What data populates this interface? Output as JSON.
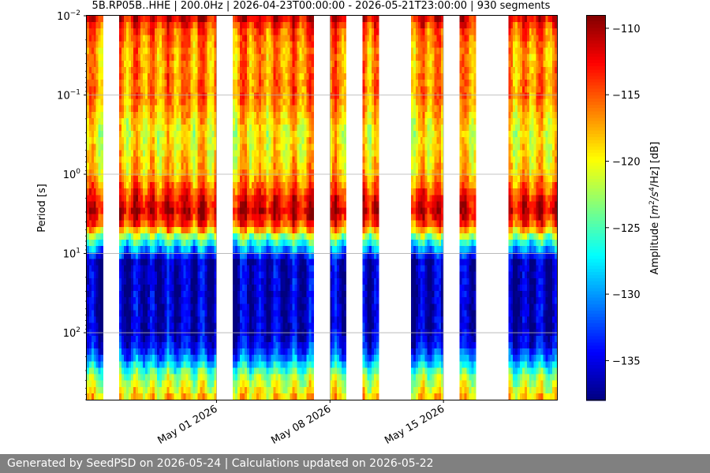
{
  "chart_data": {
    "type": "heatmap",
    "title": "5B.RP05B..HHE | 200.0Hz | 2026-04-23T00:00:00 - 2026-05-21T23:00:00 | 930 segments",
    "ylabel": "Period [s]",
    "xlabel": "",
    "y_scale": "log",
    "y_axis_inverted": true,
    "y_range": [
      0.01,
      700
    ],
    "y_ticks": [
      {
        "value": 0.01,
        "base": "10",
        "exp": "−2"
      },
      {
        "value": 0.1,
        "base": "10",
        "exp": "−1"
      },
      {
        "value": 1,
        "base": "10",
        "exp": "0"
      },
      {
        "value": 10,
        "base": "10",
        "exp": "1"
      },
      {
        "value": 100,
        "base": "10",
        "exp": "2"
      }
    ],
    "x_range": [
      "2026-04-23T00:00",
      "2026-05-22T00:00"
    ],
    "x_ticks": [
      {
        "date": "2026-05-01",
        "label": "May 01 2026"
      },
      {
        "date": "2026-05-08",
        "label": "May 08 2026"
      },
      {
        "date": "2026-05-15",
        "label": "May 15 2026"
      }
    ],
    "grid": true,
    "data_segments": [
      [
        "2026-04-23T00:00",
        "2026-04-24T00:00"
      ],
      [
        "2026-04-25T00:00",
        "2026-05-01T00:00"
      ],
      [
        "2026-05-02T00:00",
        "2026-05-07T00:00"
      ],
      [
        "2026-05-08T00:00",
        "2026-05-09T00:00"
      ],
      [
        "2026-05-10T00:00",
        "2026-05-11T00:00"
      ],
      [
        "2026-05-13T00:00",
        "2026-05-15T00:00"
      ],
      [
        "2026-05-16T00:00",
        "2026-05-17T00:00"
      ],
      [
        "2026-05-19T00:00",
        "2026-05-22T00:00"
      ]
    ],
    "amplitude_profile": [
      {
        "period": 0.01,
        "amplitude_db": -111
      },
      {
        "period": 0.015,
        "amplitude_db": -115
      },
      {
        "period": 0.03,
        "amplitude_db": -117
      },
      {
        "period": 0.1,
        "amplitude_db": -116
      },
      {
        "period": 0.3,
        "amplitude_db": -120
      },
      {
        "period": 1,
        "amplitude_db": -118
      },
      {
        "period": 2,
        "amplitude_db": -113
      },
      {
        "period": 3,
        "amplitude_db": -111
      },
      {
        "period": 4.5,
        "amplitude_db": -115
      },
      {
        "period": 6.5,
        "amplitude_db": -124
      },
      {
        "period": 9,
        "amplitude_db": -130
      },
      {
        "period": 12,
        "amplitude_db": -136
      },
      {
        "period": 100,
        "amplitude_db": -136
      },
      {
        "period": 150,
        "amplitude_db": -134
      },
      {
        "period": 220,
        "amplitude_db": -130
      },
      {
        "period": 350,
        "amplitude_db": -123
      },
      {
        "period": 700,
        "amplitude_db": -118
      }
    ],
    "colorbar": {
      "label": "Amplitude [m²/s⁴/Hz] [dB]",
      "label_parts": {
        "pre": "Amplitude [",
        "m": "m",
        "exp1": "2",
        "s": "/s",
        "exp2": "4",
        "post": "/Hz] [dB]"
      },
      "range": [
        -138,
        -109
      ],
      "ticks": [
        -110,
        -115,
        -120,
        -125,
        -130,
        -135
      ],
      "colormap": "jet"
    }
  },
  "footer": {
    "text": "Generated by SeedPSD on 2026-05-24 | Calculations updated on 2026-05-22"
  }
}
